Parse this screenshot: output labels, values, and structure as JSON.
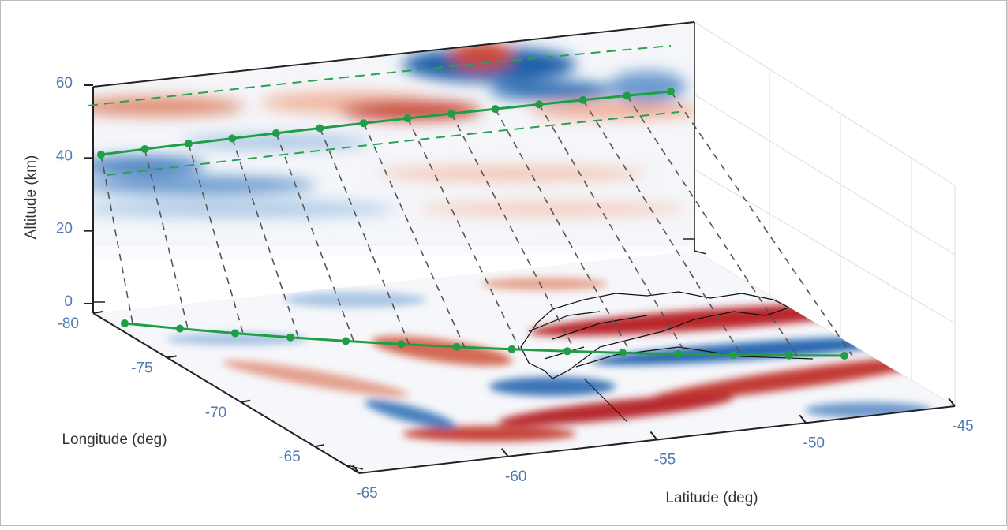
{
  "chart_data": {
    "type": "surface3d",
    "zlabel": "Altitude (km)",
    "xlabel": "Longitude (deg)",
    "ylabel": "Latitude (deg)",
    "zlim": [
      0,
      60
    ],
    "zticks": [
      0,
      20,
      40,
      60
    ],
    "xlim": [
      -80,
      -62
    ],
    "xticks": [
      -80,
      -75,
      -70,
      -65
    ],
    "ylim": [
      -65,
      -45
    ],
    "yticks": [
      -65,
      -60,
      -55,
      -50,
      -45
    ]
  }
}
